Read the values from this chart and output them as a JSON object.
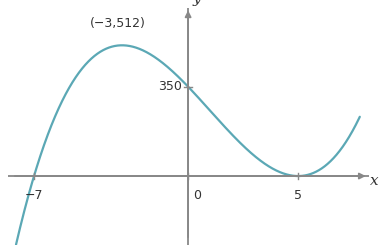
{
  "curve_color": "#5ba8b5",
  "axis_color": "#888888",
  "text_color": "#333333",
  "annotation_text": "(−3,512)",
  "y_tick_value": 350,
  "x_tick_labels": [
    "−7",
    "0",
    "5"
  ],
  "x_tick_values": [
    -7,
    0,
    5
  ],
  "axis_label_x": "x",
  "axis_label_y": "y",
  "xlim": [
    -8.2,
    8.2
  ],
  "ylim": [
    -270,
    660
  ],
  "x_plot_min": -8.0,
  "x_plot_max": 7.8,
  "figsize": [
    3.8,
    2.5
  ],
  "dpi": 100
}
